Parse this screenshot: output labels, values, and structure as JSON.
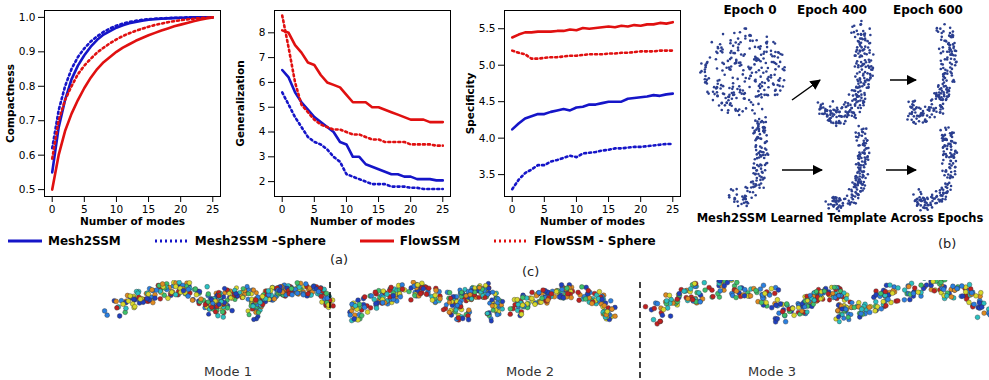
{
  "chart_data": [
    {
      "type": "line",
      "x_label": "Number of modes",
      "y_label": "Compactness",
      "legend": "bottom",
      "grid": false,
      "xlim": [
        -1.2,
        26.2
      ],
      "xticks": [
        0,
        5,
        10,
        15,
        20,
        25
      ],
      "ylim": [
        0.48,
        1.02
      ],
      "yticks": [
        0.5,
        0.6,
        0.7,
        0.8,
        0.9,
        {
          "value": 1,
          "label": "1.0"
        }
      ],
      "x": [
        0,
        1,
        2,
        3,
        4,
        5,
        6,
        7,
        8,
        9,
        10,
        11,
        12,
        13,
        14,
        15,
        16,
        17,
        18,
        19,
        20,
        21,
        22,
        23,
        24,
        25
      ],
      "series": [
        {
          "name": "Mesh2SSM",
          "color": "#1515c8",
          "line_style": "solid",
          "values": [
            0.55,
            0.68,
            0.76,
            0.82,
            0.86,
            0.89,
            0.915,
            0.935,
            0.95,
            0.96,
            0.97,
            0.977,
            0.983,
            0.987,
            0.99,
            0.993,
            0.995,
            0.996,
            0.997,
            0.998,
            0.999,
            0.999,
            1.0,
            1.0,
            1.0,
            1.0
          ]
        },
        {
          "name": "Mesh2SSM –Sphere",
          "color": "#1515c8",
          "line_style": "dotted",
          "values": [
            0.62,
            0.73,
            0.8,
            0.85,
            0.885,
            0.91,
            0.93,
            0.945,
            0.958,
            0.968,
            0.976,
            0.982,
            0.987,
            0.99,
            0.993,
            0.995,
            0.996,
            0.997,
            0.998,
            0.999,
            0.999,
            1.0,
            1.0,
            1.0,
            1.0,
            1.0
          ]
        },
        {
          "name": "FlowSSM",
          "color": "#e01010",
          "line_style": "solid",
          "values": [
            0.5,
            0.6,
            0.67,
            0.72,
            0.76,
            0.795,
            0.825,
            0.85,
            0.87,
            0.885,
            0.9,
            0.912,
            0.922,
            0.932,
            0.94,
            0.948,
            0.955,
            0.962,
            0.968,
            0.974,
            0.979,
            0.984,
            0.989,
            0.993,
            0.997,
            1.0
          ]
        },
        {
          "name": "FlowSSM - Sphere",
          "color": "#e01010",
          "line_style": "dotted",
          "values": [
            0.59,
            0.7,
            0.76,
            0.8,
            0.835,
            0.86,
            0.88,
            0.898,
            0.912,
            0.925,
            0.936,
            0.946,
            0.954,
            0.961,
            0.967,
            0.973,
            0.978,
            0.982,
            0.986,
            0.989,
            0.992,
            0.994,
            0.996,
            0.998,
            0.999,
            1.0
          ]
        }
      ]
    },
    {
      "type": "line",
      "x_label": "Number of modes",
      "y_label": "Generalization",
      "legend": "bottom",
      "grid": false,
      "xlim": [
        -1.2,
        26.2
      ],
      "xticks": [
        0,
        5,
        10,
        15,
        20,
        25
      ],
      "ylim": [
        1.4,
        8.9
      ],
      "yticks": [
        2,
        3,
        4,
        5,
        6,
        7,
        8
      ],
      "x": [
        0,
        1,
        2,
        3,
        4,
        5,
        6,
        7,
        8,
        9,
        10,
        11,
        12,
        13,
        14,
        15,
        16,
        17,
        18,
        19,
        20,
        21,
        22,
        23,
        24,
        25
      ],
      "series": [
        {
          "name": "Mesh2SSM",
          "color": "#1515c8",
          "line_style": "solid",
          "values": [
            6.5,
            6.2,
            5.6,
            5.2,
            4.9,
            4.6,
            4.4,
            4.2,
            4.0,
            3.6,
            3.5,
            3.0,
            3.0,
            2.7,
            2.6,
            2.5,
            2.4,
            2.3,
            2.3,
            2.2,
            2.2,
            2.1,
            2.1,
            2.1,
            2.05,
            2.05
          ]
        },
        {
          "name": "Mesh2SSM –Sphere",
          "color": "#1515c8",
          "line_style": "dotted",
          "values": [
            5.6,
            5.1,
            4.6,
            4.2,
            3.8,
            3.6,
            3.5,
            3.3,
            3.0,
            2.8,
            2.3,
            2.2,
            2.1,
            2.0,
            1.9,
            1.9,
            1.9,
            1.8,
            1.8,
            1.8,
            1.75,
            1.75,
            1.7,
            1.7,
            1.7,
            1.7
          ]
        },
        {
          "name": "FlowSSM",
          "color": "#e01010",
          "line_style": "solid",
          "values": [
            8.1,
            8.0,
            7.5,
            7.2,
            6.8,
            6.7,
            6.3,
            6.0,
            5.9,
            5.8,
            5.5,
            5.2,
            5.2,
            5.2,
            5.0,
            5.0,
            4.9,
            4.8,
            4.7,
            4.6,
            4.5,
            4.5,
            4.5,
            4.4,
            4.4,
            4.4
          ]
        },
        {
          "name": "FlowSSM - Sphere",
          "color": "#e01010",
          "line_style": "dotted",
          "values": [
            8.7,
            7.4,
            6.0,
            5.1,
            4.8,
            4.5,
            4.3,
            4.2,
            4.1,
            4.1,
            4.0,
            3.9,
            3.9,
            3.8,
            3.7,
            3.7,
            3.6,
            3.6,
            3.6,
            3.6,
            3.5,
            3.5,
            3.5,
            3.5,
            3.45,
            3.45
          ]
        }
      ]
    },
    {
      "type": "line",
      "x_label": "Number of modes",
      "y_label": "Specificity",
      "legend": "bottom",
      "grid": false,
      "xlim": [
        -1.2,
        26.2
      ],
      "xticks": [
        0,
        5,
        10,
        15,
        20,
        25
      ],
      "ylim": [
        3.2,
        5.75
      ],
      "yticks": [
        3.5,
        {
          "value": 4,
          "label": "4.0"
        },
        4.5,
        {
          "value": 5,
          "label": "5.0"
        },
        5.5
      ],
      "x": [
        0,
        1,
        2,
        3,
        4,
        5,
        6,
        7,
        8,
        9,
        10,
        11,
        12,
        13,
        14,
        15,
        16,
        17,
        18,
        19,
        20,
        21,
        22,
        23,
        24,
        25
      ],
      "series": [
        {
          "name": "Mesh2SSM",
          "color": "#1515c8",
          "line_style": "solid",
          "values": [
            4.12,
            4.2,
            4.27,
            4.3,
            4.33,
            4.33,
            4.36,
            4.38,
            4.4,
            4.38,
            4.42,
            4.43,
            4.46,
            4.46,
            4.48,
            4.5,
            4.5,
            4.5,
            4.54,
            4.55,
            4.56,
            4.57,
            4.59,
            4.58,
            4.6,
            4.61
          ]
        },
        {
          "name": "Mesh2SSM –Sphere",
          "color": "#1515c8",
          "line_style": "dotted",
          "values": [
            3.3,
            3.43,
            3.52,
            3.57,
            3.63,
            3.63,
            3.68,
            3.7,
            3.73,
            3.76,
            3.74,
            3.79,
            3.8,
            3.81,
            3.83,
            3.84,
            3.86,
            3.86,
            3.87,
            3.88,
            3.88,
            3.89,
            3.9,
            3.91,
            3.92,
            3.92
          ]
        },
        {
          "name": "FlowSSM",
          "color": "#e01010",
          "line_style": "solid",
          "values": [
            5.38,
            5.42,
            5.45,
            5.45,
            5.46,
            5.46,
            5.46,
            5.47,
            5.47,
            5.49,
            5.48,
            5.51,
            5.5,
            5.51,
            5.52,
            5.53,
            5.52,
            5.54,
            5.53,
            5.55,
            5.54,
            5.56,
            5.56,
            5.58,
            5.57,
            5.59
          ]
        },
        {
          "name": "FlowSSM - Sphere",
          "color": "#e01010",
          "line_style": "dotted",
          "values": [
            5.2,
            5.17,
            5.15,
            5.09,
            5.09,
            5.1,
            5.11,
            5.11,
            5.12,
            5.13,
            5.13,
            5.14,
            5.15,
            5.15,
            5.15,
            5.16,
            5.16,
            5.17,
            5.17,
            5.18,
            5.19,
            5.19,
            5.19,
            5.2,
            5.2,
            5.2
          ]
        }
      ]
    }
  ],
  "figure": {
    "panel_labels": {
      "a": "(a)",
      "b": "(b)",
      "c": "(c)"
    },
    "template": {
      "epochs": [
        "Epoch 0",
        "Epoch 400",
        "Epoch 600"
      ],
      "caption": "Mesh2SSM Learned Template Across Epochs"
    },
    "modes": [
      "Mode 1",
      "Mode 2",
      "Mode 3"
    ]
  }
}
